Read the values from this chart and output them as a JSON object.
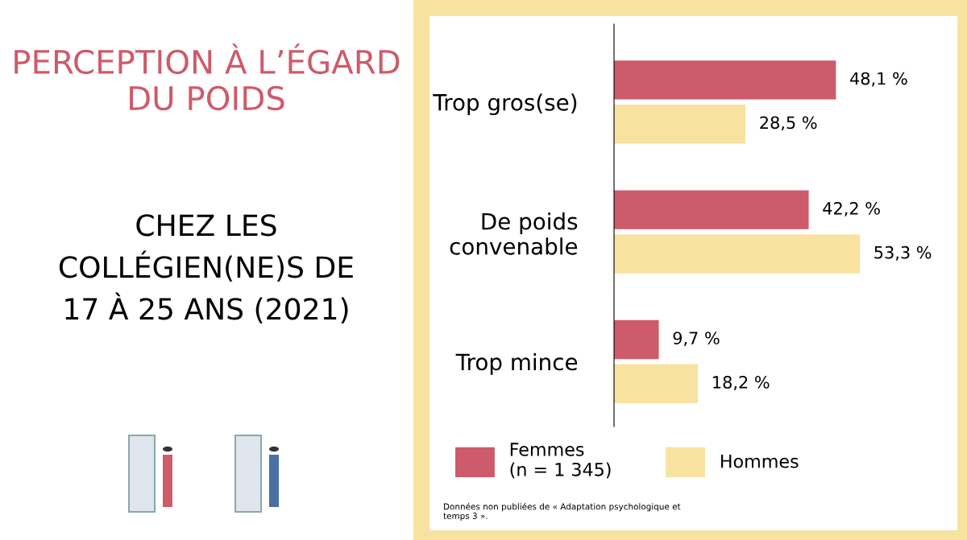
{
  "chart_data": {
    "type": "bar",
    "orientation": "horizontal",
    "title": "PERCEPTION À L’ÉGARD DU POIDS",
    "subtitle": "CHEZ LES COLLÉGIEN(NE)S DE 17 À 25 ANS (2021)",
    "categories": [
      "Trop gros(se)",
      "De poids\nconvenable",
      "Trop mince"
    ],
    "series": [
      {
        "name": "Femmes\n(n = 1 345)",
        "color": "#cd5b6a",
        "values": [
          48.1,
          42.2,
          9.7
        ],
        "value_labels": [
          "48,1 %",
          "42,2 %",
          "9,7 %"
        ]
      },
      {
        "name": "Hommes",
        "color": "#f8e2a0",
        "values": [
          28.5,
          53.3,
          18.2
        ],
        "value_labels": [
          "28,5 %",
          "53,3 %",
          "18,2 %"
        ]
      }
    ],
    "legend": "bottom",
    "grid": false,
    "annotations": [
      "Données non publiées de « Adaptation psychologique et\ntemps 3 »."
    ]
  }
}
